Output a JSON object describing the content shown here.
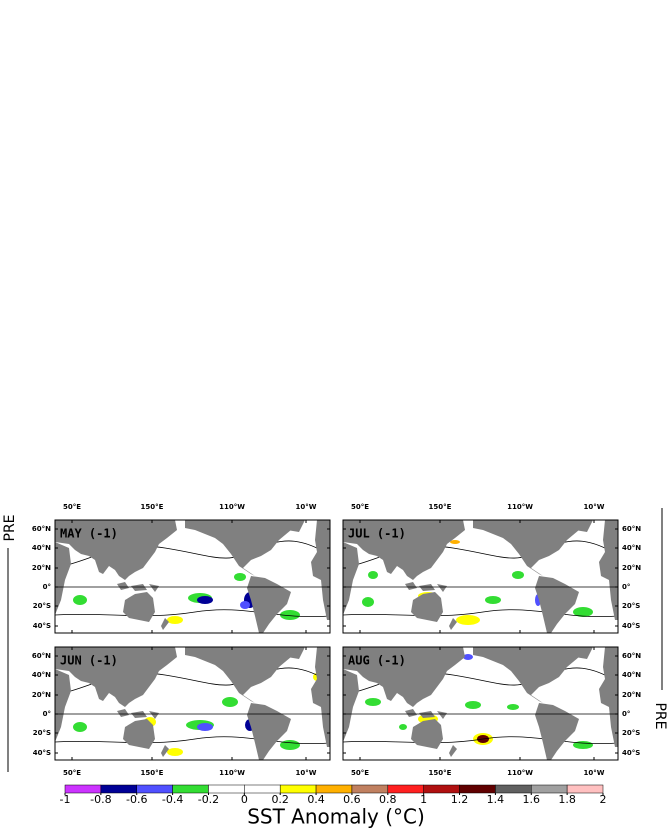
{
  "side_label": "PRE",
  "panels": [
    {
      "label": "MAY (-1)"
    },
    {
      "label": "JUL (-1)"
    },
    {
      "label": "JUN (-1)"
    },
    {
      "label": "AUG (-1)"
    }
  ],
  "lon_labels": [
    "50°E",
    "150°E",
    "110°W",
    "10°W"
  ],
  "lat_labels": [
    "60°N",
    "40°N",
    "20°N",
    "0°",
    "20°S",
    "40°S"
  ],
  "colorbar": {
    "title": "SST Anomaly (°C)",
    "clim": [
      -1,
      2
    ],
    "ticks": [
      -1,
      -0.8,
      -0.6,
      -0.4,
      -0.2,
      0,
      0.2,
      0.4,
      0.6,
      0.8,
      1,
      1.2,
      1.4,
      1.6,
      1.8,
      2
    ],
    "colors": [
      "#cc33ff",
      "#000096",
      "#5050ff",
      "#33dd33",
      "#ffffff",
      "#ffffff",
      "#ffff00",
      "#ffb000",
      "#c08060",
      "#ff2020",
      "#b01010",
      "#600000",
      "#606060",
      "#a0a0a0",
      "#ffc0c0"
    ]
  }
}
